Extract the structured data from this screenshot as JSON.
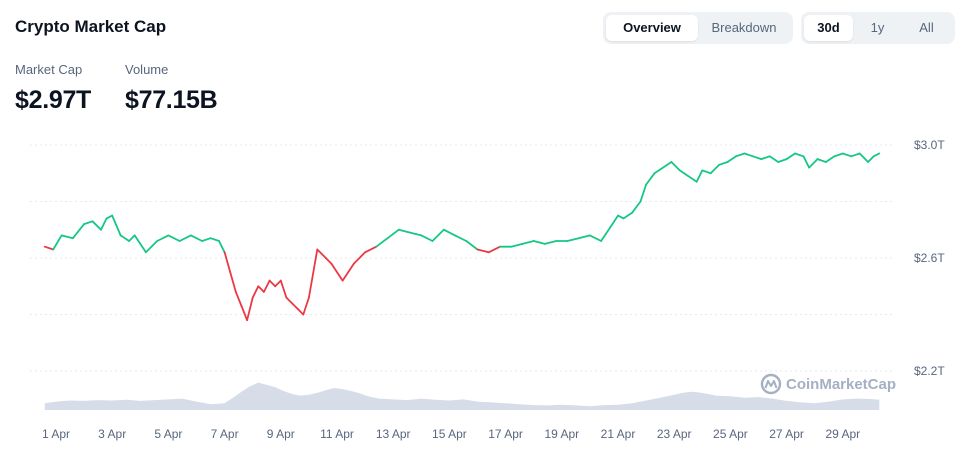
{
  "header": {
    "title": "Crypto Market Cap",
    "view_tabs": [
      {
        "label": "Overview",
        "active": true
      },
      {
        "label": "Breakdown",
        "active": false
      }
    ],
    "range_tabs": [
      {
        "label": "30d",
        "active": true
      },
      {
        "label": "1y",
        "active": false
      },
      {
        "label": "All",
        "active": false
      }
    ]
  },
  "stats": {
    "market_cap": {
      "label": "Market Cap",
      "value": "$2.97T"
    },
    "volume": {
      "label": "Volume",
      "value": "$77.15B"
    }
  },
  "watermark": {
    "text": "CoinMarketCap",
    "icon": "coinmarketcap-logo-icon"
  },
  "colors": {
    "up": "#16c784",
    "down": "#ea3943",
    "volume": "#cfd6e4",
    "grid": "#e6e9ef"
  },
  "chart_data": {
    "type": "line",
    "x_unit": "day of April (fractional)",
    "y_unit": "trillion USD",
    "ylim": [
      2.2,
      3.0
    ],
    "yticks": [
      {
        "value": 3.0,
        "label": "$3.0T"
      },
      {
        "value": 2.6,
        "label": "$2.6T"
      },
      {
        "value": 2.2,
        "label": "$2.2T"
      }
    ],
    "xticks": [
      {
        "value": 1,
        "label": "1 Apr"
      },
      {
        "value": 3,
        "label": "3 Apr"
      },
      {
        "value": 5,
        "label": "5 Apr"
      },
      {
        "value": 7,
        "label": "7 Apr"
      },
      {
        "value": 9,
        "label": "9 Apr"
      },
      {
        "value": 11,
        "label": "11 Apr"
      },
      {
        "value": 13,
        "label": "13 Apr"
      },
      {
        "value": 15,
        "label": "15 Apr"
      },
      {
        "value": 17,
        "label": "17 Apr"
      },
      {
        "value": 19,
        "label": "19 Apr"
      },
      {
        "value": 21,
        "label": "21 Apr"
      },
      {
        "value": 23,
        "label": "23 Apr"
      },
      {
        "value": 25,
        "label": "25 Apr"
      },
      {
        "value": 27,
        "label": "27 Apr"
      },
      {
        "value": 29,
        "label": "29 Apr"
      }
    ],
    "series": [
      {
        "x": [
          0.6,
          0.9,
          1.2,
          1.6,
          2.0,
          2.3,
          2.6,
          2.8,
          3.0,
          3.3,
          3.6,
          3.8,
          4.2,
          4.6,
          5.0,
          5.4,
          5.8,
          6.2,
          6.5,
          6.8,
          7.0,
          7.2,
          7.4,
          7.6,
          7.8,
          8.0,
          8.2,
          8.4,
          8.6,
          8.8,
          9.0,
          9.2,
          9.4,
          9.6,
          9.8,
          10.0,
          10.3,
          10.6,
          10.8,
          11.2,
          11.6,
          12.0,
          12.4,
          12.8,
          13.2,
          13.6,
          14.0,
          14.4,
          14.8,
          15.2,
          15.6,
          16.0,
          16.4,
          16.8,
          17.2,
          17.6,
          18.0,
          18.4,
          18.8,
          19.2,
          19.6,
          20.0,
          20.4,
          20.8,
          21.0,
          21.2,
          21.5,
          21.8,
          22.0,
          22.3,
          22.6,
          22.9,
          23.2,
          23.5,
          23.8,
          24.0,
          24.3,
          24.6,
          24.9,
          25.2,
          25.5,
          25.8,
          26.1,
          26.4,
          26.7,
          27.0,
          27.3,
          27.6,
          27.8,
          28.1,
          28.4,
          28.7,
          29.0,
          29.3,
          29.6,
          29.9,
          30.1,
          30.3
        ],
        "y": [
          2.64,
          2.63,
          2.68,
          2.67,
          2.72,
          2.73,
          2.7,
          2.74,
          2.75,
          2.68,
          2.66,
          2.68,
          2.62,
          2.66,
          2.68,
          2.66,
          2.68,
          2.66,
          2.67,
          2.66,
          2.62,
          2.55,
          2.48,
          2.43,
          2.38,
          2.46,
          2.5,
          2.48,
          2.52,
          2.5,
          2.52,
          2.46,
          2.44,
          2.42,
          2.4,
          2.46,
          2.63,
          2.6,
          2.58,
          2.52,
          2.58,
          2.62,
          2.64,
          2.67,
          2.7,
          2.69,
          2.68,
          2.66,
          2.7,
          2.68,
          2.66,
          2.63,
          2.62,
          2.64,
          2.64,
          2.65,
          2.66,
          2.65,
          2.66,
          2.66,
          2.67,
          2.68,
          2.66,
          2.72,
          2.75,
          2.74,
          2.76,
          2.8,
          2.86,
          2.9,
          2.92,
          2.94,
          2.91,
          2.89,
          2.87,
          2.91,
          2.9,
          2.93,
          2.94,
          2.96,
          2.97,
          2.96,
          2.95,
          2.96,
          2.94,
          2.95,
          2.97,
          2.96,
          2.92,
          2.95,
          2.94,
          2.96,
          2.97,
          2.96,
          2.97,
          2.94,
          2.96,
          2.97
        ]
      },
      {
        "name": "Volume",
        "x": [
          0.6,
          1.0,
          1.5,
          2.0,
          2.5,
          3.0,
          3.5,
          4.0,
          4.5,
          5.0,
          5.5,
          6.0,
          6.5,
          7.0,
          7.3,
          7.6,
          7.9,
          8.2,
          8.5,
          8.8,
          9.1,
          9.4,
          9.7,
          10.0,
          10.3,
          10.6,
          10.9,
          11.2,
          11.5,
          11.8,
          12.1,
          12.5,
          13.0,
          13.5,
          14.0,
          14.5,
          15.0,
          15.5,
          16.0,
          16.5,
          17.0,
          17.5,
          18.0,
          18.5,
          19.0,
          19.5,
          20.0,
          20.5,
          21.0,
          21.5,
          22.0,
          22.5,
          23.0,
          23.3,
          23.6,
          23.9,
          24.2,
          24.5,
          25.0,
          25.5,
          26.0,
          26.5,
          27.0,
          27.5,
          28.0,
          28.5,
          29.0,
          29.5,
          30.0,
          30.3
        ],
        "y": [
          0.18,
          0.22,
          0.25,
          0.24,
          0.26,
          0.25,
          0.27,
          0.24,
          0.26,
          0.28,
          0.3,
          0.22,
          0.15,
          0.18,
          0.32,
          0.48,
          0.62,
          0.72,
          0.66,
          0.6,
          0.5,
          0.42,
          0.38,
          0.4,
          0.45,
          0.52,
          0.58,
          0.55,
          0.5,
          0.44,
          0.36,
          0.3,
          0.28,
          0.26,
          0.3,
          0.27,
          0.25,
          0.28,
          0.22,
          0.2,
          0.18,
          0.15,
          0.13,
          0.12,
          0.14,
          0.12,
          0.1,
          0.13,
          0.14,
          0.18,
          0.25,
          0.32,
          0.4,
          0.45,
          0.48,
          0.46,
          0.42,
          0.38,
          0.36,
          0.32,
          0.34,
          0.3,
          0.24,
          0.2,
          0.18,
          0.22,
          0.28,
          0.3,
          0.29,
          0.27
        ]
      }
    ]
  }
}
